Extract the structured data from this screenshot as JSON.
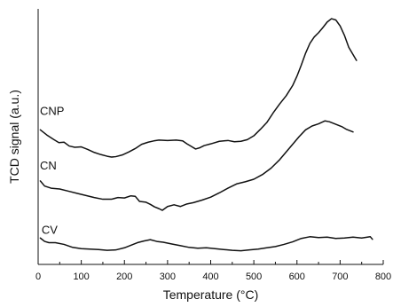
{
  "chart_data": {
    "type": "line",
    "title": "",
    "xlabel": "Temperature (°C)",
    "ylabel": "TCD signal (a.u.)",
    "xlim": [
      0,
      800
    ],
    "ylim": [
      0,
      30
    ],
    "x_ticks": [
      0,
      100,
      200,
      300,
      400,
      500,
      600,
      700,
      800
    ],
    "y_ticks": [],
    "grid": false,
    "legend": "none",
    "line_color": "#111111",
    "series": [
      {
        "name": "CNP",
        "label_at": [
          4,
          17.55
        ],
        "x": [
          5,
          20,
          35,
          48,
          60,
          72,
          85,
          100,
          115,
          130,
          145,
          160,
          170,
          180,
          195,
          210,
          225,
          240,
          255,
          268,
          280,
          300,
          320,
          335,
          345,
          355,
          365,
          375,
          385,
          400,
          420,
          440,
          455,
          470,
          485,
          500,
          515,
          530,
          545,
          560,
          575,
          590,
          600,
          610,
          620,
          630,
          640,
          650,
          660,
          670,
          680,
          690,
          700,
          710,
          720,
          738
        ],
        "y": [
          15.8,
          15.2,
          14.7,
          14.3,
          14.35,
          13.9,
          13.75,
          13.8,
          13.5,
          13.15,
          12.9,
          12.7,
          12.6,
          12.65,
          12.85,
          13.2,
          13.6,
          14.1,
          14.35,
          14.5,
          14.6,
          14.55,
          14.6,
          14.5,
          14.15,
          13.85,
          13.55,
          13.7,
          13.95,
          14.15,
          14.45,
          14.55,
          14.4,
          14.45,
          14.65,
          15.1,
          15.85,
          16.65,
          17.8,
          18.85,
          19.8,
          21,
          22.1,
          23.4,
          24.8,
          25.95,
          26.7,
          27.2,
          27.8,
          28.45,
          28.85,
          28.7,
          28.0,
          26.9,
          25.5,
          23.95
        ]
      },
      {
        "name": "CN",
        "label_at": [
          4,
          11.15
        ],
        "x": [
          5,
          15,
          30,
          50,
          70,
          90,
          110,
          130,
          150,
          170,
          185,
          200,
          215,
          225,
          235,
          250,
          260,
          270,
          280,
          288,
          300,
          315,
          330,
          345,
          360,
          380,
          400,
          420,
          440,
          460,
          480,
          500,
          520,
          540,
          560,
          575,
          590,
          605,
          620,
          635,
          650,
          665,
          675,
          690,
          705,
          715,
          730
        ],
        "y": [
          9.8,
          9.2,
          8.95,
          8.85,
          8.6,
          8.35,
          8.1,
          7.85,
          7.65,
          7.65,
          7.85,
          7.8,
          8.05,
          8.0,
          7.4,
          7.3,
          7.05,
          6.75,
          6.55,
          6.35,
          6.8,
          7.0,
          6.8,
          7.1,
          7.25,
          7.55,
          7.9,
          8.4,
          8.95,
          9.45,
          9.7,
          10.0,
          10.55,
          11.3,
          12.3,
          13.2,
          14.1,
          15.0,
          15.8,
          16.25,
          16.5,
          16.85,
          16.75,
          16.45,
          16.15,
          15.85,
          15.55
        ]
      },
      {
        "name": "CV",
        "label_at": [
          8,
          3.6
        ],
        "x": [
          5,
          15,
          25,
          40,
          60,
          80,
          100,
          120,
          140,
          160,
          180,
          200,
          215,
          230,
          245,
          260,
          275,
          290,
          310,
          330,
          350,
          370,
          390,
          410,
          430,
          450,
          470,
          490,
          510,
          530,
          550,
          570,
          590,
          610,
          630,
          650,
          670,
          690,
          710,
          730,
          750,
          770,
          775
        ],
        "y": [
          3.1,
          2.7,
          2.55,
          2.55,
          2.35,
          2.0,
          1.85,
          1.8,
          1.75,
          1.65,
          1.7,
          1.95,
          2.25,
          2.55,
          2.75,
          2.9,
          2.7,
          2.6,
          2.4,
          2.2,
          2.0,
          1.9,
          1.95,
          1.85,
          1.75,
          1.65,
          1.6,
          1.7,
          1.8,
          1.95,
          2.1,
          2.35,
          2.65,
          3.05,
          3.25,
          3.15,
          3.2,
          3.05,
          3.1,
          3.2,
          3.1,
          3.25,
          2.95
        ]
      }
    ]
  }
}
